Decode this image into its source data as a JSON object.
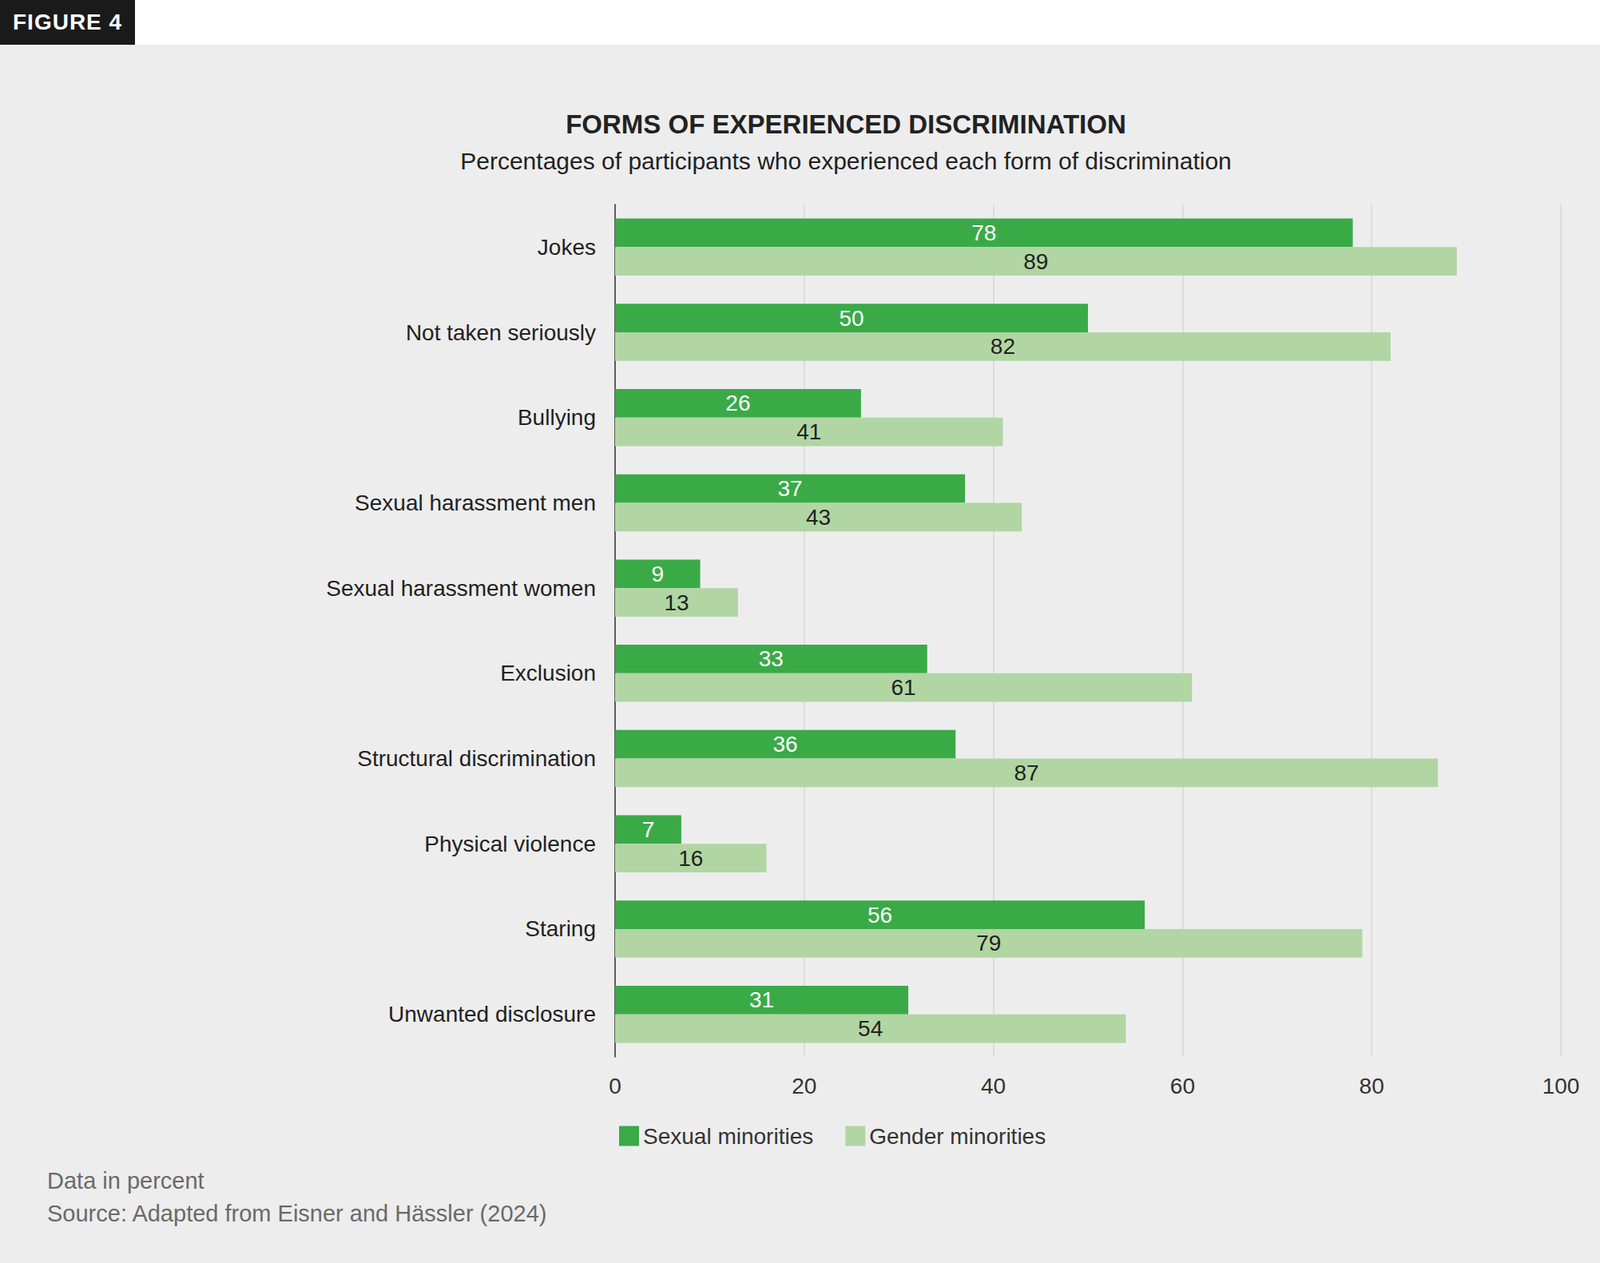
{
  "figure_label": "FIGURE 4",
  "chart_data": {
    "type": "bar",
    "orientation": "horizontal",
    "title": "FORMS OF EXPERIENCED DISCRIMINATION",
    "subtitle": "Percentages of participants who experienced each form of discrimination",
    "categories": [
      "Jokes",
      "Not taken seriously",
      "Bullying",
      "Sexual harassment men",
      "Sexual harassment women",
      "Exclusion",
      "Structural discrimination",
      "Physical violence",
      "Staring",
      "Unwanted disclosure"
    ],
    "series": [
      {
        "name": "Sexual minorities",
        "color": "#3aaa47",
        "values": [
          78,
          50,
          26,
          37,
          9,
          33,
          36,
          7,
          56,
          31
        ]
      },
      {
        "name": "Gender minorities",
        "color": "#b1d6a3",
        "values": [
          89,
          82,
          41,
          43,
          13,
          61,
          87,
          16,
          79,
          54
        ]
      }
    ],
    "xlim": [
      0,
      100
    ],
    "xticks": [
      0,
      20,
      40,
      60,
      80,
      100
    ],
    "grid": true,
    "legend": "bottom",
    "data_labels": true
  },
  "notes": [
    "Data in percent",
    "Source: Adapted from Eisner and Hässler (2024)"
  ]
}
